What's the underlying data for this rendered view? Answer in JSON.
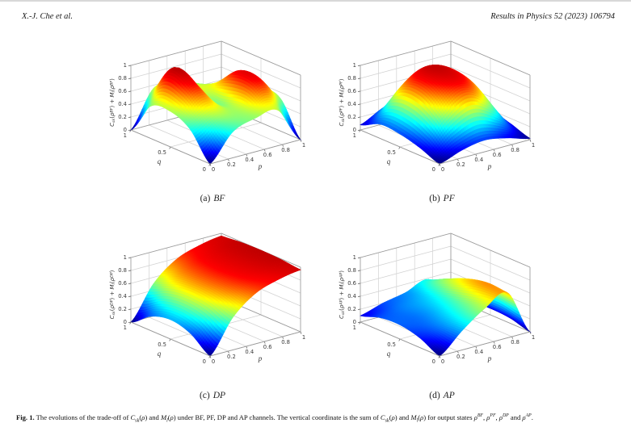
{
  "header": {
    "left": "X.-J. Che et al.",
    "right": "Results in Physics 52 (2023) 106794"
  },
  "figure_caption": {
    "segments": [
      {
        "t": "Fig. 1.",
        "s": "b"
      },
      {
        "t": " The evolutions of the trade-off of ",
        "s": ""
      },
      {
        "t": "C",
        "s": "i"
      },
      {
        "t": "sk",
        "s": "sub"
      },
      {
        "t": "(",
        "s": ""
      },
      {
        "t": "ρ",
        "s": "i"
      },
      {
        "t": ")",
        "s": ""
      },
      {
        "t": " and ",
        "s": ""
      },
      {
        "t": "M",
        "s": "i"
      },
      {
        "t": "l",
        "s": "subi"
      },
      {
        "t": "(",
        "s": ""
      },
      {
        "t": "ρ",
        "s": "i"
      },
      {
        "t": ")",
        "s": ""
      },
      {
        "t": " under BF, PF, DP and AP channels. The vertical coordinate is the sum of ",
        "s": ""
      },
      {
        "t": "C",
        "s": "i"
      },
      {
        "t": "sk",
        "s": "sub"
      },
      {
        "t": "(",
        "s": ""
      },
      {
        "t": "ρ",
        "s": "i"
      },
      {
        "t": ")",
        "s": ""
      },
      {
        "t": " and ",
        "s": ""
      },
      {
        "t": "M",
        "s": "i"
      },
      {
        "t": "l",
        "s": "subi"
      },
      {
        "t": "(",
        "s": ""
      },
      {
        "t": "ρ",
        "s": "i"
      },
      {
        "t": ")",
        "s": ""
      },
      {
        "t": " for output states ",
        "s": ""
      },
      {
        "t": "ρ",
        "s": "i"
      },
      {
        "t": "BF",
        "s": "sup"
      },
      {
        "t": ", ",
        "s": ""
      },
      {
        "t": "ρ",
        "s": "i"
      },
      {
        "t": "PF",
        "s": "sup"
      },
      {
        "t": ", ",
        "s": ""
      },
      {
        "t": "ρ",
        "s": "i"
      },
      {
        "t": "DP",
        "s": "sup"
      },
      {
        "t": " and ",
        "s": ""
      },
      {
        "t": "ρ",
        "s": "i"
      },
      {
        "t": "AP",
        "s": "sup"
      },
      {
        "t": ".",
        "s": ""
      }
    ]
  },
  "chart_data": [
    {
      "type": "surface",
      "channel": "BF",
      "caption_index": "(a)",
      "xlabel": "p",
      "ylabel": "q",
      "xlim": [
        0,
        1
      ],
      "ylim": [
        0,
        1
      ],
      "zlim": [
        0,
        1
      ],
      "x_ticks": [
        0,
        0.2,
        0.4,
        0.6,
        0.8,
        1
      ],
      "y_ticks": [
        0,
        0.5,
        1
      ],
      "z_ticks": [
        0,
        0.2,
        0.4,
        0.6,
        0.8,
        1
      ],
      "colormap": "jet",
      "grid_p": [
        0,
        0.25,
        0.5,
        0.75,
        1
      ],
      "grid_q": [
        0,
        0.25,
        0.5,
        0.75,
        1
      ],
      "z_values": [
        [
          0,
          0.4,
          0.52,
          0.55,
          0
        ],
        [
          0.4,
          0.58,
          0.55,
          0.88,
          0.5
        ],
        [
          0.55,
          0.88,
          0.5,
          0.9,
          0.55
        ],
        [
          0.5,
          1.0,
          0.62,
          0.58,
          0.42
        ],
        [
          0,
          0.55,
          0.55,
          0.42,
          0
        ]
      ],
      "zlabel_segments": [
        {
          "t": "C",
          "s": "i"
        },
        {
          "t": "sk",
          "s": "subi"
        },
        {
          "t": "(",
          "s": ""
        },
        {
          "t": "ρ",
          "s": "i"
        },
        {
          "t": "BF",
          "s": "sup"
        },
        {
          "t": ") + ",
          "s": ""
        },
        {
          "t": "M",
          "s": "i"
        },
        {
          "t": "l",
          "s": "subi"
        },
        {
          "t": "(",
          "s": ""
        },
        {
          "t": "ρ",
          "s": "i"
        },
        {
          "t": "BF",
          "s": "sup"
        },
        {
          "t": ")",
          "s": ""
        }
      ]
    },
    {
      "type": "surface",
      "channel": "PF",
      "caption_index": "(b)",
      "xlabel": "p",
      "ylabel": "q",
      "xlim": [
        0,
        1
      ],
      "ylim": [
        0,
        1
      ],
      "zlim": [
        0,
        1
      ],
      "x_ticks": [
        0,
        0.2,
        0.4,
        0.6,
        0.8,
        1
      ],
      "y_ticks": [
        0,
        0.5,
        1
      ],
      "z_ticks": [
        0,
        0.2,
        0.4,
        0.6,
        0.8,
        1
      ],
      "colormap": "jet",
      "grid_p": [
        0,
        0.25,
        0.5,
        0.75,
        1
      ],
      "grid_q": [
        0,
        0.25,
        0.5,
        0.75,
        1
      ],
      "z_values": [
        [
          0,
          0.12,
          0.18,
          0.12,
          0.02
        ],
        [
          0.12,
          0.55,
          0.78,
          0.55,
          0.12
        ],
        [
          0.2,
          0.78,
          0.97,
          0.78,
          0.2
        ],
        [
          0.22,
          0.72,
          0.92,
          0.72,
          0.2
        ],
        [
          0.08,
          0.25,
          0.35,
          0.25,
          0.06
        ]
      ],
      "zlabel_segments": [
        {
          "t": "C",
          "s": "i"
        },
        {
          "t": "sk",
          "s": "subi"
        },
        {
          "t": "(",
          "s": ""
        },
        {
          "t": "ρ",
          "s": "i"
        },
        {
          "t": "PF",
          "s": "sup"
        },
        {
          "t": ") + ",
          "s": ""
        },
        {
          "t": "M",
          "s": "i"
        },
        {
          "t": "l",
          "s": "subi"
        },
        {
          "t": "(",
          "s": ""
        },
        {
          "t": "ρ",
          "s": "i"
        },
        {
          "t": "PF",
          "s": "sup"
        },
        {
          "t": ")",
          "s": ""
        }
      ]
    },
    {
      "type": "surface",
      "channel": "DP",
      "caption_index": "(c)",
      "xlabel": "p",
      "ylabel": "q",
      "xlim": [
        0,
        1
      ],
      "ylim": [
        0,
        1
      ],
      "zlim": [
        0,
        1
      ],
      "x_ticks": [
        0,
        0.2,
        0.4,
        0.6,
        0.8,
        1
      ],
      "y_ticks": [
        0,
        0.5,
        1
      ],
      "z_ticks": [
        0,
        0.2,
        0.4,
        0.6,
        0.8,
        1
      ],
      "colormap": "jet",
      "grid_p": [
        0,
        0.25,
        0.5,
        0.75,
        1
      ],
      "grid_q": [
        0,
        0.25,
        0.5,
        0.75,
        1
      ],
      "z_values": [
        [
          0,
          0.5,
          0.78,
          0.9,
          0.96
        ],
        [
          0.22,
          0.62,
          0.84,
          0.94,
          0.99
        ],
        [
          0.3,
          0.66,
          0.86,
          0.95,
          1.0
        ],
        [
          0.22,
          0.62,
          0.84,
          0.94,
          0.99
        ],
        [
          0,
          0.5,
          0.78,
          0.9,
          0.96
        ]
      ],
      "zlabel_segments": [
        {
          "t": "C",
          "s": "i"
        },
        {
          "t": "sk",
          "s": "subi"
        },
        {
          "t": "(",
          "s": ""
        },
        {
          "t": "ρ",
          "s": "i"
        },
        {
          "t": "DP",
          "s": "sup"
        },
        {
          "t": ") + ",
          "s": ""
        },
        {
          "t": "M",
          "s": "i"
        },
        {
          "t": "l",
          "s": "subi"
        },
        {
          "t": "(",
          "s": ""
        },
        {
          "t": "ρ",
          "s": "i"
        },
        {
          "t": "DP",
          "s": "sup"
        },
        {
          "t": ")",
          "s": ""
        }
      ]
    },
    {
      "type": "surface",
      "channel": "AP",
      "caption_index": "(d)",
      "xlabel": "p",
      "ylabel": "q",
      "xlim": [
        0,
        1
      ],
      "ylim": [
        0,
        1
      ],
      "zlim": [
        0,
        1
      ],
      "x_ticks": [
        0,
        0.2,
        0.4,
        0.6,
        0.8,
        1
      ],
      "y_ticks": [
        0,
        0.5,
        1
      ],
      "z_ticks": [
        0,
        0.2,
        0.4,
        0.6,
        0.8,
        1
      ],
      "colormap": "jet",
      "grid_p": [
        0,
        0.25,
        0.5,
        0.75,
        1
      ],
      "grid_q": [
        0,
        0.25,
        0.5,
        0.75,
        1
      ],
      "z_values": [
        [
          0,
          0.3,
          0.55,
          0.7,
          0
        ],
        [
          0.15,
          0.28,
          0.48,
          0.72,
          0.08
        ],
        [
          0.22,
          0.25,
          0.4,
          0.65,
          0.1
        ],
        [
          0.2,
          0.25,
          0.33,
          0.52,
          0.08
        ],
        [
          0.1,
          0.2,
          0.27,
          0.38,
          0.05
        ]
      ],
      "zlabel_segments": [
        {
          "t": "C",
          "s": "i"
        },
        {
          "t": "sk",
          "s": "subi"
        },
        {
          "t": "(",
          "s": ""
        },
        {
          "t": "ρ",
          "s": "i"
        },
        {
          "t": "AP",
          "s": "sup"
        },
        {
          "t": ") + ",
          "s": ""
        },
        {
          "t": "M",
          "s": "i"
        },
        {
          "t": "l",
          "s": "subi"
        },
        {
          "t": "(",
          "s": ""
        },
        {
          "t": "ρ",
          "s": "i"
        },
        {
          "t": "AP",
          "s": "sup"
        },
        {
          "t": ")",
          "s": ""
        }
      ]
    }
  ]
}
